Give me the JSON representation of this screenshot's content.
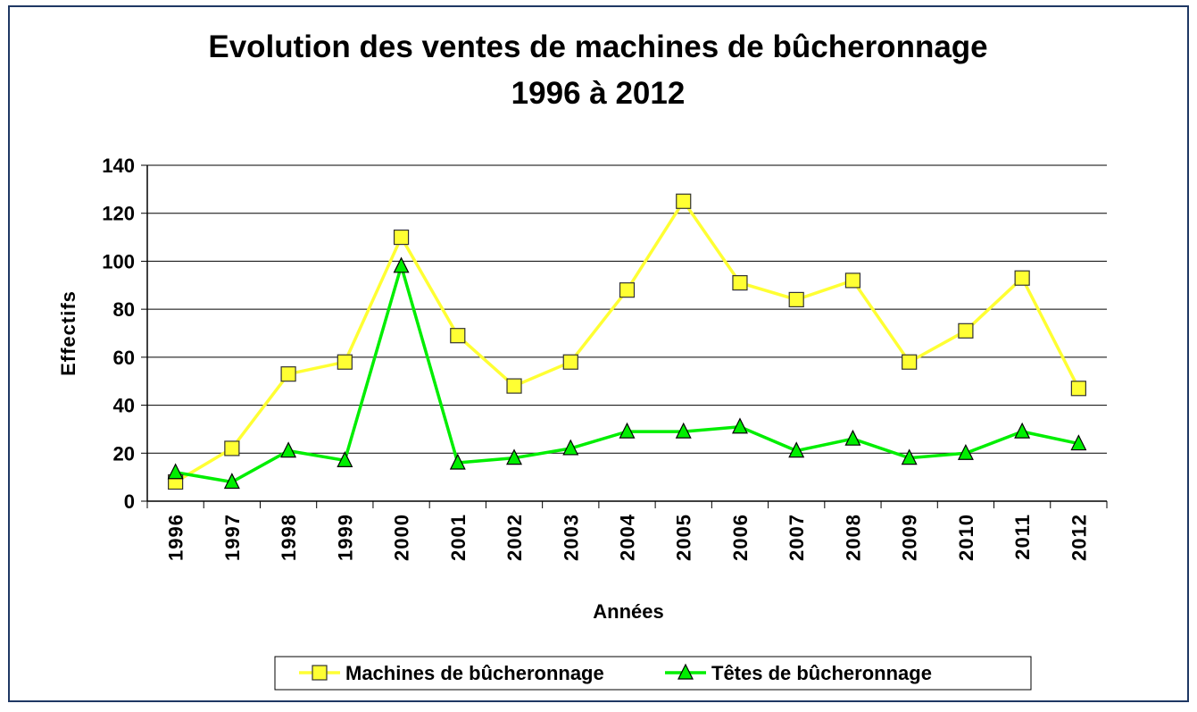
{
  "chart_data": {
    "type": "line",
    "title": [
      "Evolution des ventes de machines de bûcheronnage",
      "1996 à 2012"
    ],
    "x_label": "Années",
    "y_label": "Effectifs",
    "categories": [
      "1996",
      "1997",
      "1998",
      "1999",
      "2000",
      "2001",
      "2002",
      "2003",
      "2004",
      "2005",
      "2006",
      "2007",
      "2008",
      "2009",
      "2010",
      "2011",
      "2012"
    ],
    "series": [
      {
        "name": "Machines de bûcheronnage",
        "color": "#ffff33",
        "marker": "square",
        "values": [
          8,
          22,
          53,
          58,
          110,
          69,
          48,
          58,
          88,
          125,
          91,
          84,
          92,
          58,
          71,
          93,
          47
        ]
      },
      {
        "name": "Têtes de bûcheronnage",
        "color": "#00ee00",
        "marker": "triangle",
        "values": [
          12,
          8,
          21,
          17,
          98,
          16,
          18,
          22,
          29,
          29,
          31,
          21,
          26,
          18,
          20,
          29,
          24
        ]
      }
    ],
    "ylim": [
      0,
      140
    ],
    "yticks": [
      0,
      20,
      40,
      60,
      80,
      100,
      120,
      140
    ],
    "grid": true,
    "legend": "bottom"
  }
}
